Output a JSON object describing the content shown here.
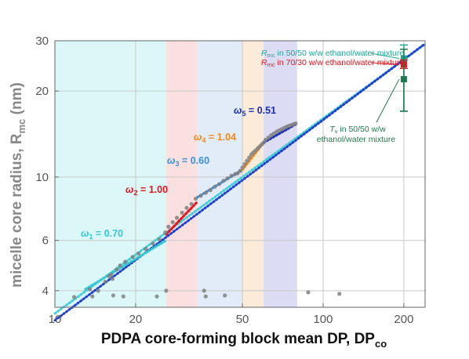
{
  "chart_data": {
    "type": "scatter",
    "title": "",
    "xlabel": "PDPA core-forming block mean DP, DP",
    "xlabel_sub": "co",
    "ylabel": "micelle core radius, R",
    "ylabel_sub": "mc",
    "ylabel_unit": " (nm)",
    "xscale": "log",
    "yscale": "log",
    "xlim": [
      10,
      240
    ],
    "ylim": [
      3.5,
      30
    ],
    "xticks": [
      {
        "value": 10,
        "label": "10"
      },
      {
        "value": 20,
        "label": "20"
      },
      {
        "value": 50,
        "label": "50"
      },
      {
        "value": 100,
        "label": "100"
      },
      {
        "value": 200,
        "label": "200"
      }
    ],
    "yticks": [
      {
        "value": 4,
        "label": "4"
      },
      {
        "value": 6,
        "label": "6"
      },
      {
        "value": 10,
        "label": "10"
      },
      {
        "value": 20,
        "label": "20"
      },
      {
        "value": 30,
        "label": "30"
      }
    ],
    "grid": true,
    "regions": [
      {
        "x": [
          10,
          26
        ],
        "color": "#dcf7f7"
      },
      {
        "x": [
          26,
          34
        ],
        "color": "#fbe0e0"
      },
      {
        "x": [
          34,
          50
        ],
        "color": "#e2ecf8"
      },
      {
        "x": [
          50,
          60
        ],
        "color": "#fcebd8"
      },
      {
        "x": [
          60,
          80
        ],
        "color": "#dcdcf4"
      }
    ],
    "fit_lines": [
      {
        "color": "#3fd0d8",
        "x": [
          10,
          240
        ],
        "y": [
          3.33,
          29.2
        ]
      },
      {
        "color": "#1e3fd0",
        "x": [
          10,
          240
        ],
        "y": [
          3.15,
          29.3
        ]
      }
    ],
    "segment_fits": [
      {
        "label": "ω",
        "sub": "1",
        "value": " = 0.70",
        "color": "#35c9d3",
        "x": [
          13,
          26
        ],
        "y": [
          4.05,
          6.0
        ]
      },
      {
        "label": "ω",
        "sub": "2",
        "value": " = 1.00",
        "color": "#e8121b",
        "x": [
          26,
          34
        ],
        "y": [
          6.3,
          8.2
        ]
      },
      {
        "label": "ω",
        "sub": "3",
        "value": " = 0.60",
        "color": "#3a8fe0",
        "x": [
          34,
          50
        ],
        "y": [
          8.5,
          10.6
        ]
      },
      {
        "label": "ω",
        "sub": "4",
        "value": " = 1.04",
        "color": "#f08a1c",
        "x": [
          50,
          60
        ],
        "y": [
          10.6,
          13.2
        ]
      },
      {
        "label": "ω",
        "sub": "5",
        "value": " = 0.51",
        "color": "#1a30b8",
        "x": [
          60,
          80
        ],
        "y": [
          13.2,
          15.4
        ]
      }
    ],
    "series": [
      {
        "marker_color": "#808080",
        "x": [
          11.8,
          13.5,
          14.5,
          15.4,
          15.9,
          16.2,
          16.4,
          17.0,
          17.5,
          18.3,
          19.5,
          20.5,
          21.8,
          23.2,
          24.5,
          25.8,
          26.5,
          27.5,
          28.5,
          29.8,
          31.0,
          32.3,
          33.5,
          35.0,
          36.5,
          38.0,
          39.5,
          41.0,
          42.5,
          44.0,
          45.5,
          47.0,
          48.0,
          49.0,
          50.0,
          51.0,
          52.0,
          53.0,
          54.0,
          55.0,
          56.0,
          57.0,
          58.0,
          59.0,
          60.0,
          61.0,
          62.5,
          64.0,
          65.5,
          67.0,
          68.5,
          70.0,
          71.5,
          73.0,
          74.5,
          76.0,
          77.5,
          79.0
        ],
        "y": [
          3.8,
          4.05,
          4.0,
          4.3,
          4.5,
          4.55,
          4.4,
          4.75,
          4.9,
          5.05,
          5.25,
          5.4,
          5.6,
          5.85,
          6.05,
          6.4,
          6.7,
          6.95,
          7.2,
          7.5,
          7.8,
          8.05,
          8.4,
          8.6,
          8.8,
          9.0,
          9.25,
          9.45,
          9.7,
          9.9,
          10.1,
          10.25,
          10.3,
          10.5,
          10.8,
          11.1,
          11.4,
          11.7,
          12.0,
          12.2,
          12.4,
          12.6,
          12.8,
          13.0,
          13.2,
          13.5,
          13.75,
          14.0,
          14.2,
          14.4,
          14.55,
          14.7,
          14.85,
          15.0,
          15.1,
          15.2,
          15.3,
          15.4
        ]
      },
      {
        "marker_color": "#808080",
        "x": [
          13.8,
          16.5,
          18.0,
          24.0,
          26.0,
          36.0,
          36.5,
          43.0,
          88.0,
          115.0
        ],
        "y": [
          3.82,
          3.85,
          3.82,
          3.82,
          4.0,
          4.0,
          3.82,
          3.85,
          3.95,
          3.9
        ]
      }
    ],
    "error_points": [
      {
        "x": 200,
        "y": 26.0,
        "err_low": 17.0,
        "err_high": 29.0,
        "color": "#1aa896"
      },
      {
        "x": 200,
        "y": 24.8,
        "err_low": 24.0,
        "err_high": 25.7,
        "color": "#e8121b"
      },
      {
        "x": 200,
        "y": 22.0,
        "err_low": 17.0,
        "err_high": 28.0,
        "color": "#1f7a4e"
      }
    ],
    "legend": [
      {
        "symbol": "R",
        "sub": "mc",
        "text": " in 50/50 w/w ethanol/water mixture",
        "color": "#1aa896"
      },
      {
        "symbol": "R",
        "sub": "mc",
        "text": " in 70/30 w/w ethanol/water mixture",
        "color": "#e8121b"
      }
    ],
    "annotation_tv": {
      "symbol": "T",
      "sub": "v",
      "line1": " in 50/50 w/w",
      "line2": "ethanol/water mixture",
      "color": "#1f7a4e"
    }
  }
}
